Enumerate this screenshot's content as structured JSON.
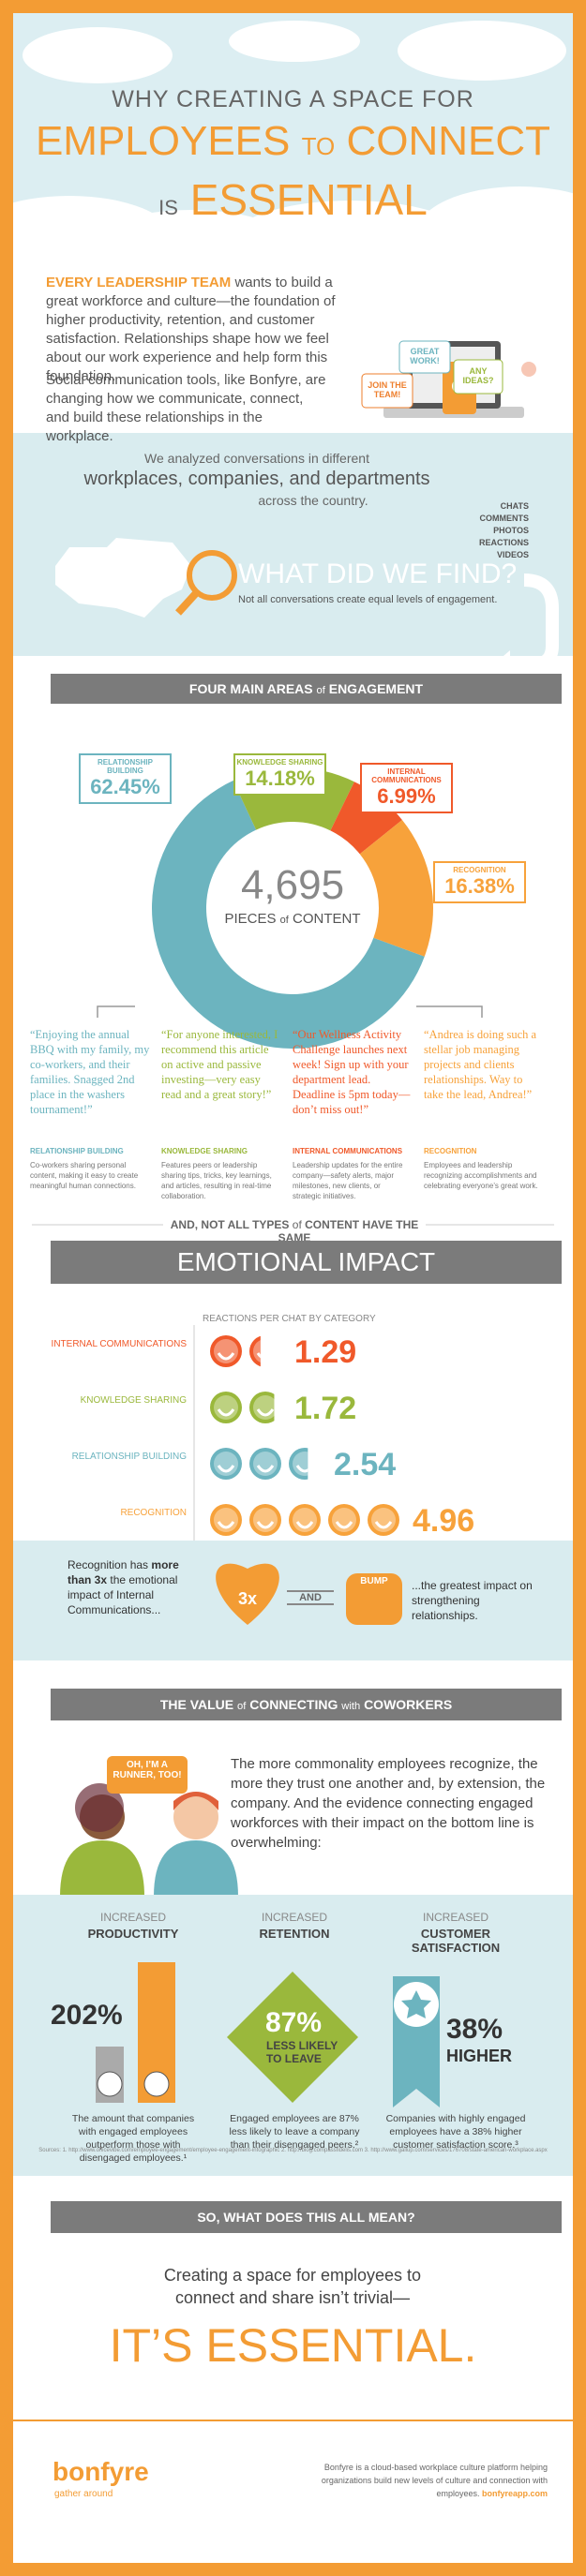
{
  "header": {
    "line1": "WHY CREATING A SPACE FOR",
    "line2a": "EMPLOYEES",
    "line2b": "TO",
    "line2c": "CONNECT",
    "line3a": "IS",
    "line3b": "ESSENTIAL"
  },
  "intro": {
    "lead": "EVERY LEADERSHIP TEAM",
    "text1": "wants to build a great workforce and culture—the foundation of higher productivity, retention, and customer satisfaction. Relationships shape how we feel about our work experience and help form this foundation.",
    "text2": "Social communication tools, like Bonfyre, are changing how we communicate, connect, and build these relationships in the workplace.",
    "bubbles": [
      "JOIN THE TEAM!",
      "GREAT WORK!",
      "ANY IDEAS?"
    ]
  },
  "analysis": {
    "line1": "We analyzed conversations in different",
    "line2": "workplaces, companies, and departments",
    "line3": "across the country.",
    "types": [
      "CHATS",
      "COMMENTS",
      "PHOTOS",
      "REACTIONS",
      "VIDEOS"
    ],
    "question": "WHAT DID WE FIND?",
    "note": "Not all conversations create equal levels of engagement."
  },
  "engagement": {
    "banner_a": "FOUR MAIN AREAS",
    "banner_b": "of",
    "banner_c": "ENGAGEMENT",
    "total": "4,695",
    "total_a": "PIECES",
    "total_b": "of",
    "total_c": "CONTENT",
    "areas": [
      {
        "name": "RELATIONSHIP BUILDING",
        "value": 62.45,
        "label": "62.45%",
        "color": "#6cb4bf"
      },
      {
        "name": "KNOWLEDGE SHARING",
        "value": 14.18,
        "label": "14.18%",
        "color": "#9ab83c"
      },
      {
        "name": "INTERNAL COMMUNICATIONS",
        "value": 6.99,
        "label": "6.99%",
        "color": "#f0592a"
      },
      {
        "name": "RECOGNITION",
        "value": 16.38,
        "label": "16.38%",
        "color": "#f7a23b"
      }
    ],
    "quotes": [
      {
        "quote": "“Enjoying the annual BBQ with my family, my co-workers, and their families. Snagged 2nd place in the washers tournament!”",
        "title": "RELATIONSHIP BUILDING",
        "desc": "Co-workers sharing personal content, making it easy to create meaningful human connections."
      },
      {
        "quote": "“For anyone interested, I recommend this article on active and passive investing—very easy read and a great story!”",
        "title": "KNOWLEDGE SHARING",
        "desc": "Features peers or leadership sharing tips, tricks, key learnings, and articles, resulting in real-time collaboration."
      },
      {
        "quote": "“Our Wellness Activity Challenge launches next week! Sign up with your department lead. Deadline is 5pm today—don’t miss out!”",
        "title": "INTERNAL COMMUNICATIONS",
        "desc": "Leadership updates for the entire company—safety alerts, major milestones, new clients, or strategic initiatives."
      },
      {
        "quote": "“Andrea is doing such a stellar job managing projects and clients relationships. Way to take the lead, Andrea!”",
        "title": "RECOGNITION",
        "desc": "Employees and leadership recognizing accomplishments and celebrating everyone’s great work."
      }
    ]
  },
  "impact": {
    "intro_a": "AND, NOT ALL TYPES",
    "intro_b": "of",
    "intro_c": "CONTENT HAVE THE SAME",
    "banner": "EMOTIONAL IMPACT",
    "axis": "REACTIONS PER CHAT BY CATEGORY",
    "rows": [
      {
        "name": "INTERNAL COMMUNICATIONS",
        "value": 1.29,
        "color": "#f0592a"
      },
      {
        "name": "KNOWLEDGE SHARING",
        "value": 1.72,
        "color": "#9ab83c"
      },
      {
        "name": "RELATIONSHIP BUILDING",
        "value": 2.54,
        "color": "#6cb4bf"
      },
      {
        "name": "RECOGNITION",
        "value": 4.96,
        "color": "#f7a23b"
      }
    ],
    "rec_a": "Recognition has",
    "rec_b": "more than 3x",
    "rec_c": "the emotional impact of Internal Communications...",
    "heart": "3x",
    "and": "AND",
    "bump": "BUMP",
    "rec_d": "...the greatest impact on strengthening relationships."
  },
  "value": {
    "banner_a": "THE VALUE",
    "banner_b": "of",
    "banner_c": "CONNECTING",
    "banner_d": "with",
    "banner_e": "COWORKERS",
    "bubble": "OH, I’M A RUNNER, TOO!",
    "text": "The more commonality employees recognize, the more they trust one another and, by extension, the company. And the evidence connecting engaged workforces with their impact on the bottom line is overwhelming:",
    "stats": [
      {
        "pre": "INCREASED",
        "title": "PRODUCTIVITY",
        "figure": "202%",
        "desc": "The amount that companies with engaged employees outperform those with disengaged employees.¹"
      },
      {
        "pre": "INCREASED",
        "title": "RETENTION",
        "figure": "87%",
        "sub1": "LESS LIKELY",
        "sub2": "TO LEAVE",
        "desc": "Engaged employees are 87% less likely to leave a company than their disengaged peers.²"
      },
      {
        "pre": "INCREASED",
        "title": "CUSTOMER SATISFACTION",
        "figure": "38%",
        "sub1": "HIGHER",
        "desc": "Companies with highly engaged employees have a 38% higher customer satisfaction score.³"
      }
    ],
    "sources": "Sources: 1. http://www.officevibe.com/employee-engagement/employee-engagement-infographic  2. http://blog.compassfidelis.com  3. http://www.gallup.com/services/176708/state-american-workplace.aspx"
  },
  "conclusion": {
    "banner": "SO, WHAT DOES THIS ALL MEAN?",
    "line": "Creating a space for employees to connect and share isn’t trivial—",
    "big": "IT’S ESSENTIAL."
  },
  "footer": {
    "logo": "bonfyre",
    "tagline": "gather around",
    "text": "Bonfyre is a cloud-based workplace culture platform helping organizations build new levels of culture and connection with employees.",
    "link": "bonfyreapp.com"
  }
}
